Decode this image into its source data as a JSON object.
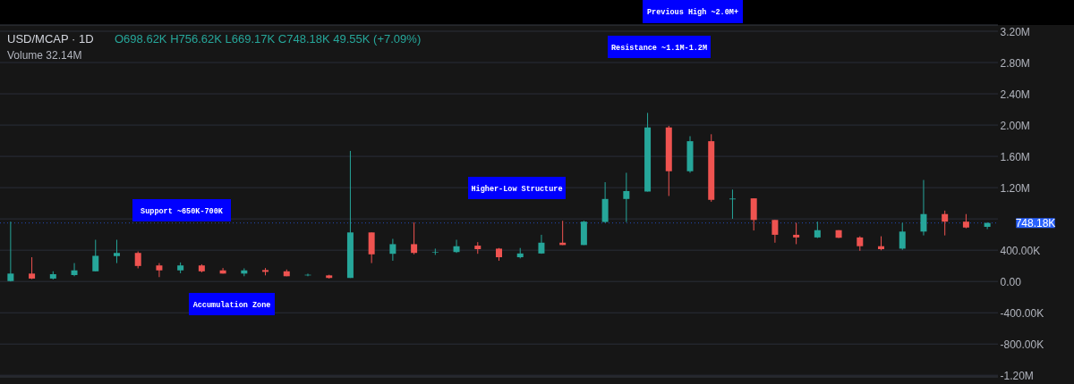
{
  "chart_data": {
    "type": "candlestick",
    "title": "USD/MCAP · 1D",
    "categories": [
      null,
      null,
      null,
      null,
      null,
      null,
      null,
      null,
      null,
      null,
      null,
      null,
      null,
      null,
      null,
      null,
      null,
      null,
      null,
      null,
      null,
      null,
      null,
      null,
      null,
      null,
      null,
      null,
      null,
      null,
      null,
      null,
      null,
      null,
      null,
      null,
      null,
      null,
      null,
      null,
      null,
      null,
      null,
      null,
      null,
      null,
      null
    ],
    "ohlc": [
      [
        5000,
        765000,
        0,
        101000
      ],
      [
        101000,
        310000,
        30000,
        37000
      ],
      [
        37000,
        130000,
        26000,
        93000
      ],
      [
        82000,
        235000,
        67000,
        142000
      ],
      [
        130000,
        533000,
        130000,
        328000
      ],
      [
        325000,
        533000,
        235000,
        365000
      ],
      [
        365000,
        384000,
        168000,
        198000
      ],
      [
        205000,
        235000,
        56000,
        142000
      ],
      [
        142000,
        243000,
        105000,
        205000
      ],
      [
        205000,
        220000,
        116000,
        130000
      ],
      [
        142000,
        172000,
        101000,
        101000
      ],
      [
        101000,
        168000,
        67000,
        142000
      ],
      [
        146000,
        172000,
        78000,
        123000
      ],
      [
        130000,
        153000,
        67000,
        67000
      ],
      [
        78000,
        100000,
        67000,
        86000
      ],
      [
        78000,
        86000,
        37000,
        45000
      ],
      [
        45000,
        1670000,
        45000,
        627000
      ],
      [
        627000,
        627000,
        235000,
        347000
      ],
      [
        354000,
        545000,
        265000,
        477000
      ],
      [
        477000,
        757000,
        347000,
        365000
      ],
      [
        370000,
        420000,
        340000,
        377000
      ],
      [
        377000,
        533000,
        365000,
        451000
      ],
      [
        458000,
        503000,
        354000,
        413000
      ],
      [
        420000,
        428000,
        265000,
        310000
      ],
      [
        310000,
        428000,
        295000,
        358000
      ],
      [
        358000,
        597000,
        354000,
        496000
      ],
      [
        496000,
        776000,
        466000,
        466000
      ],
      [
        466000,
        776000,
        466000,
        765000
      ],
      [
        761000,
        1270000,
        750000,
        1055000
      ],
      [
        1055000,
        1390000,
        760000,
        1156000
      ],
      [
        1150000,
        2156000,
        1150000,
        1970000
      ],
      [
        1970000,
        1990000,
        1093000,
        1410000
      ],
      [
        1410000,
        1858000,
        1390000,
        1794000
      ],
      [
        1794000,
        1883000,
        1020000,
        1044000
      ],
      [
        1050000,
        1175000,
        802000,
        1060000
      ],
      [
        1063000,
        1063000,
        652000,
        787000
      ],
      [
        787000,
        787000,
        496000,
        597000
      ],
      [
        597000,
        750000,
        477000,
        563000
      ],
      [
        563000,
        765000,
        555000,
        656000
      ],
      [
        656000,
        656000,
        555000,
        559000
      ],
      [
        563000,
        578000,
        392000,
        451000
      ],
      [
        451000,
        578000,
        399000,
        413000
      ],
      [
        420000,
        750000,
        405000,
        638000
      ],
      [
        638000,
        1298000,
        589000,
        862000
      ],
      [
        862000,
        906000,
        589000,
        765000
      ],
      [
        765000,
        862000,
        680000,
        690000
      ],
      [
        698620,
        756620,
        669170,
        748180
      ]
    ],
    "colors": [
      "#26a69a",
      "#ef5350",
      "#26a69a",
      "#26a69a",
      "#26a69a",
      "#26a69a",
      "#ef5350",
      "#ef5350",
      "#26a69a",
      "#ef5350",
      "#ef5350",
      "#26a69a",
      "#ef5350",
      "#ef5350",
      "#26a69a",
      "#ef5350",
      "#26a69a",
      "#ef5350",
      "#26a69a",
      "#ef5350",
      "#26a69a",
      "#26a69a",
      "#ef5350",
      "#ef5350",
      "#26a69a",
      "#26a69a",
      "#ef5350",
      "#26a69a",
      "#26a69a",
      "#26a69a",
      "#26a69a",
      "#ef5350",
      "#26a69a",
      "#ef5350",
      "#26a69a",
      "#ef5350",
      "#ef5350",
      "#ef5350",
      "#26a69a",
      "#ef5350",
      "#ef5350",
      "#ef5350",
      "#26a69a",
      "#26a69a",
      "#ef5350",
      "#ef5350",
      "#26a69a"
    ],
    "ylim": [
      -1220000,
      3280000
    ],
    "yticks": [
      {
        "value": -1200000,
        "label": "-1.20M"
      },
      {
        "value": -800000,
        "label": "-800.00K"
      },
      {
        "value": -400000,
        "label": "-400.00K"
      },
      {
        "value": 0,
        "label": "0.00"
      },
      {
        "value": 400000,
        "label": "400.00K"
      },
      {
        "value": 800000,
        "label": null
      },
      {
        "value": 1200000,
        "label": "1.20M"
      },
      {
        "value": 1600000,
        "label": "1.60M"
      },
      {
        "value": 2000000,
        "label": "2.00M"
      },
      {
        "value": 2400000,
        "label": "2.40M"
      },
      {
        "value": 2800000,
        "label": "2.80M"
      },
      {
        "value": 3200000,
        "label": "3.20M"
      }
    ],
    "grid": "y",
    "ref_lines": [
      {
        "axis": "y",
        "value": 748180,
        "label": "748.18K",
        "color": "#2962ff",
        "line_style": "dotted"
      }
    ],
    "annotations": [
      "O698.62K H756.62K L669.17K C748.18K 49.55K (+7.09%)",
      "Volume 32.14M",
      "Previous High ~2.0M+",
      "Resistance ~1.1M-1.2M",
      "Higher-Low Structure",
      "Support ~650K-700K",
      "Accumulation Zone"
    ]
  }
}
